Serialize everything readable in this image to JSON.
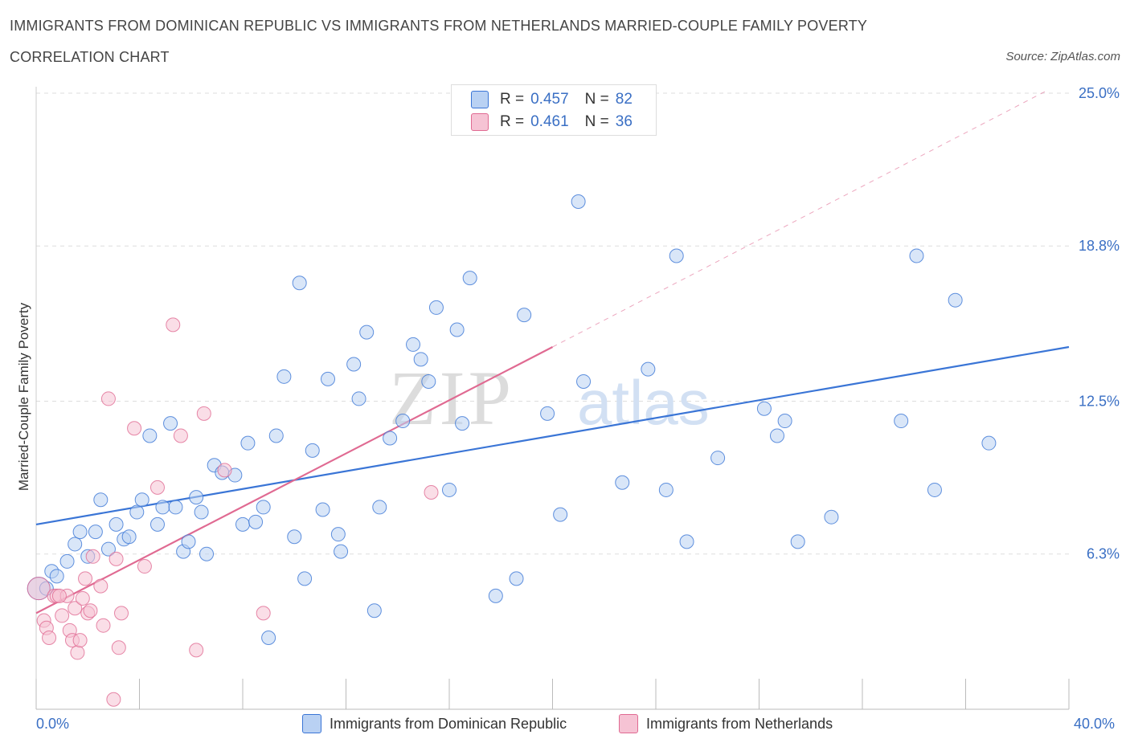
{
  "title_line1": "IMMIGRANTS FROM DOMINICAN REPUBLIC VS IMMIGRANTS FROM NETHERLANDS MARRIED-COUPLE FAMILY POVERTY",
  "title_line2": "CORRELATION CHART",
  "source": "Source: ZipAtlas.com",
  "watermark": "ZIPatlas",
  "colors": {
    "blue": "#3a75d6",
    "blue_fill": "#b9d1f3",
    "pink": "#e06a92",
    "pink_fill": "#f6c3d4",
    "tick_text": "#3a6fc4",
    "grid": "#dddddd"
  },
  "legend_top": {
    "rows": [
      {
        "r_label": "R =",
        "r_value": "0.457",
        "n_label": "N =",
        "n_value": "82",
        "color": "#b9d1f3",
        "border": "#3a75d6"
      },
      {
        "r_label": "R =",
        "r_value": "0.461",
        "n_label": "N =",
        "n_value": "36",
        "color": "#f6c3d4",
        "border": "#e06a92"
      }
    ]
  },
  "chart_data": {
    "type": "scatter",
    "title": "IMMIGRANTS FROM DOMINICAN REPUBLIC VS IMMIGRANTS FROM NETHERLANDS MARRIED-COUPLE FAMILY POVERTY CORRELATION CHART",
    "xlabel": "",
    "ylabel": "Married-Couple Family Poverty",
    "xlim": [
      0,
      40
    ],
    "ylim": [
      0,
      25
    ],
    "x_tick_labels": [
      "0.0%",
      "40.0%"
    ],
    "y_ticks": [
      6.3,
      12.5,
      18.8,
      25.0
    ],
    "y_tick_labels": [
      "6.3%",
      "12.5%",
      "18.8%",
      "25.0%"
    ],
    "grid": true,
    "legend_position": "bottom",
    "series": [
      {
        "name": "Immigrants from Dominican Republic",
        "color": "#3a75d6",
        "trend": {
          "x": [
            0,
            40
          ],
          "y": [
            7.5,
            14.7
          ],
          "dashed_extension": false
        },
        "points": [
          [
            0.1,
            4.9
          ],
          [
            0.4,
            4.9
          ],
          [
            0.6,
            5.6
          ],
          [
            0.8,
            5.4
          ],
          [
            1.2,
            6.0
          ],
          [
            1.5,
            6.7
          ],
          [
            1.7,
            7.2
          ],
          [
            2.0,
            6.2
          ],
          [
            2.3,
            7.2
          ],
          [
            2.5,
            8.5
          ],
          [
            2.8,
            6.5
          ],
          [
            3.1,
            7.5
          ],
          [
            3.4,
            6.9
          ],
          [
            3.6,
            7.0
          ],
          [
            3.9,
            8.0
          ],
          [
            4.1,
            8.5
          ],
          [
            4.4,
            11.1
          ],
          [
            4.7,
            7.5
          ],
          [
            4.9,
            8.2
          ],
          [
            5.2,
            11.6
          ],
          [
            5.4,
            8.2
          ],
          [
            5.7,
            6.4
          ],
          [
            5.9,
            6.8
          ],
          [
            6.2,
            8.6
          ],
          [
            6.4,
            8.0
          ],
          [
            6.6,
            6.3
          ],
          [
            6.9,
            9.9
          ],
          [
            7.2,
            9.6
          ],
          [
            7.7,
            9.5
          ],
          [
            8.0,
            7.5
          ],
          [
            8.2,
            10.8
          ],
          [
            8.5,
            7.6
          ],
          [
            8.8,
            8.2
          ],
          [
            9.3,
            11.1
          ],
          [
            9.6,
            13.5
          ],
          [
            10.0,
            7.0
          ],
          [
            10.2,
            17.3
          ],
          [
            10.4,
            5.3
          ],
          [
            10.7,
            10.5
          ],
          [
            11.1,
            8.1
          ],
          [
            11.3,
            13.4
          ],
          [
            11.7,
            7.1
          ],
          [
            11.8,
            6.4
          ],
          [
            12.3,
            14.0
          ],
          [
            12.5,
            12.6
          ],
          [
            12.8,
            15.3
          ],
          [
            13.1,
            4.0
          ],
          [
            13.3,
            8.2
          ],
          [
            13.7,
            11.0
          ],
          [
            14.2,
            11.7
          ],
          [
            14.6,
            14.8
          ],
          [
            14.9,
            14.2
          ],
          [
            15.2,
            13.3
          ],
          [
            15.5,
            16.3
          ],
          [
            16.0,
            8.9
          ],
          [
            16.3,
            15.4
          ],
          [
            16.5,
            11.6
          ],
          [
            16.8,
            17.5
          ],
          [
            17.8,
            4.6
          ],
          [
            18.6,
            5.3
          ],
          [
            18.9,
            16.0
          ],
          [
            19.8,
            12.0
          ],
          [
            20.3,
            7.9
          ],
          [
            21.0,
            20.6
          ],
          [
            21.2,
            13.3
          ],
          [
            22.7,
            9.2
          ],
          [
            23.7,
            13.8
          ],
          [
            24.4,
            8.9
          ],
          [
            24.8,
            18.4
          ],
          [
            25.2,
            6.8
          ],
          [
            26.4,
            10.2
          ],
          [
            28.2,
            12.2
          ],
          [
            28.7,
            11.1
          ],
          [
            29.0,
            11.7
          ],
          [
            29.5,
            6.8
          ],
          [
            30.8,
            7.8
          ],
          [
            33.5,
            11.7
          ],
          [
            34.1,
            18.4
          ],
          [
            34.8,
            8.9
          ],
          [
            35.6,
            16.6
          ],
          [
            36.9,
            10.8
          ],
          [
            9.0,
            2.9
          ]
        ]
      },
      {
        "name": "Immigrants from Netherlands",
        "color": "#e06a92",
        "trend": {
          "x": [
            0,
            20
          ],
          "y": [
            3.9,
            14.7
          ],
          "dashed_extension": true,
          "extension_to": [
            40,
            25.6
          ]
        },
        "points": [
          [
            0.1,
            4.9
          ],
          [
            0.3,
            3.6
          ],
          [
            0.4,
            3.3
          ],
          [
            0.5,
            2.9
          ],
          [
            0.7,
            4.6
          ],
          [
            0.8,
            4.6
          ],
          [
            1.0,
            3.8
          ],
          [
            1.2,
            4.6
          ],
          [
            1.3,
            3.2
          ],
          [
            1.4,
            2.8
          ],
          [
            1.5,
            4.1
          ],
          [
            1.6,
            2.3
          ],
          [
            1.7,
            2.8
          ],
          [
            1.8,
            4.5
          ],
          [
            1.9,
            5.3
          ],
          [
            2.0,
            3.9
          ],
          [
            2.1,
            4.0
          ],
          [
            2.2,
            6.2
          ],
          [
            2.5,
            5.0
          ],
          [
            2.6,
            3.4
          ],
          [
            2.8,
            12.6
          ],
          [
            3.0,
            0.4
          ],
          [
            3.1,
            6.1
          ],
          [
            3.2,
            2.5
          ],
          [
            3.3,
            3.9
          ],
          [
            3.8,
            11.4
          ],
          [
            4.2,
            5.8
          ],
          [
            4.7,
            9.0
          ],
          [
            5.3,
            15.6
          ],
          [
            5.6,
            11.1
          ],
          [
            6.5,
            12.0
          ],
          [
            6.2,
            2.4
          ],
          [
            7.3,
            9.7
          ],
          [
            8.8,
            3.9
          ],
          [
            15.3,
            8.8
          ],
          [
            0.9,
            4.6
          ]
        ]
      }
    ]
  },
  "axis": {
    "x_left_label": "0.0%",
    "x_right_label": "40.0%"
  },
  "bottom_legend": [
    {
      "label": "Immigrants from Dominican Republic",
      "color": "#b9d1f3",
      "border": "#3a75d6"
    },
    {
      "label": "Immigrants from Netherlands",
      "color": "#f6c3d4",
      "border": "#e06a92"
    }
  ]
}
